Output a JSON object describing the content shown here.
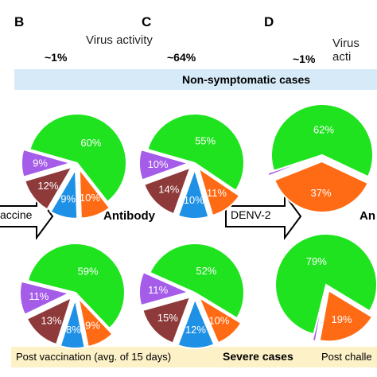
{
  "panels": {
    "b": "B",
    "c": "C",
    "d": "D"
  },
  "activity_label": "Virus activity",
  "activity_label_clipped": "Virus acti",
  "activity_values": {
    "b": "~1%",
    "c": "~64%",
    "d": "~1%"
  },
  "band_top_title": "Non-symptomatic cases",
  "band_bottom_left": "Post vaccination (avg. of 15 days)",
  "band_bottom_title": "Severe cases",
  "band_bottom_right": "Post challe",
  "arrow_left_label": "accine",
  "arrow_right_label": "DENV-2",
  "middle_label": "Antibody",
  "middle_label_clipped": "An",
  "colors": {
    "green": "#1fe31f",
    "orange": "#ff6a14",
    "blue": "#1e90e6",
    "maroon": "#8e3a3a",
    "purple": "#a55ce8",
    "band_top": "#d6eaf8",
    "band_bottom": "#fdf1c8"
  },
  "chart_data": [
    {
      "type": "pie",
      "panel": "B",
      "group": "Non-symptomatic cases",
      "slices": [
        {
          "label": "60%",
          "value": 60,
          "color": "green"
        },
        {
          "label": "10%",
          "value": 10,
          "color": "orange"
        },
        {
          "label": "9%",
          "value": 9,
          "color": "blue"
        },
        {
          "label": "12%",
          "value": 12,
          "color": "maroon"
        },
        {
          "label": "9%",
          "value": 9,
          "color": "purple"
        }
      ]
    },
    {
      "type": "pie",
      "panel": "C",
      "group": "Non-symptomatic cases",
      "slices": [
        {
          "label": "55%",
          "value": 55,
          "color": "green"
        },
        {
          "label": "11%",
          "value": 11,
          "color": "orange"
        },
        {
          "label": "10%",
          "value": 10,
          "color": "blue"
        },
        {
          "label": "14%",
          "value": 14,
          "color": "maroon"
        },
        {
          "label": "10%",
          "value": 10,
          "color": "purple"
        }
      ]
    },
    {
      "type": "pie",
      "panel": "D",
      "group": "Non-symptomatic cases",
      "slices": [
        {
          "label": "62%",
          "value": 62,
          "color": "green"
        },
        {
          "label": "37%",
          "value": 37,
          "color": "orange"
        },
        {
          "label": "",
          "value": 1,
          "color": "purple"
        }
      ]
    },
    {
      "type": "pie",
      "panel": "B",
      "group": "Severe cases",
      "slices": [
        {
          "label": "59%",
          "value": 59,
          "color": "green"
        },
        {
          "label": "9%",
          "value": 9,
          "color": "orange"
        },
        {
          "label": "8%",
          "value": 8,
          "color": "blue"
        },
        {
          "label": "13%",
          "value": 13,
          "color": "maroon"
        },
        {
          "label": "11%",
          "value": 11,
          "color": "purple"
        }
      ]
    },
    {
      "type": "pie",
      "panel": "C",
      "group": "Severe cases",
      "slices": [
        {
          "label": "52%",
          "value": 52,
          "color": "green"
        },
        {
          "label": "10%",
          "value": 10,
          "color": "orange"
        },
        {
          "label": "12%",
          "value": 12,
          "color": "blue"
        },
        {
          "label": "15%",
          "value": 15,
          "color": "maroon"
        },
        {
          "label": "11%",
          "value": 11,
          "color": "purple"
        }
      ]
    },
    {
      "type": "pie",
      "panel": "D",
      "group": "Severe cases",
      "slices": [
        {
          "label": "79%",
          "value": 79,
          "color": "green"
        },
        {
          "label": "19%",
          "value": 19,
          "color": "orange"
        },
        {
          "label": "",
          "value": 1,
          "color": "purple"
        }
      ]
    }
  ]
}
